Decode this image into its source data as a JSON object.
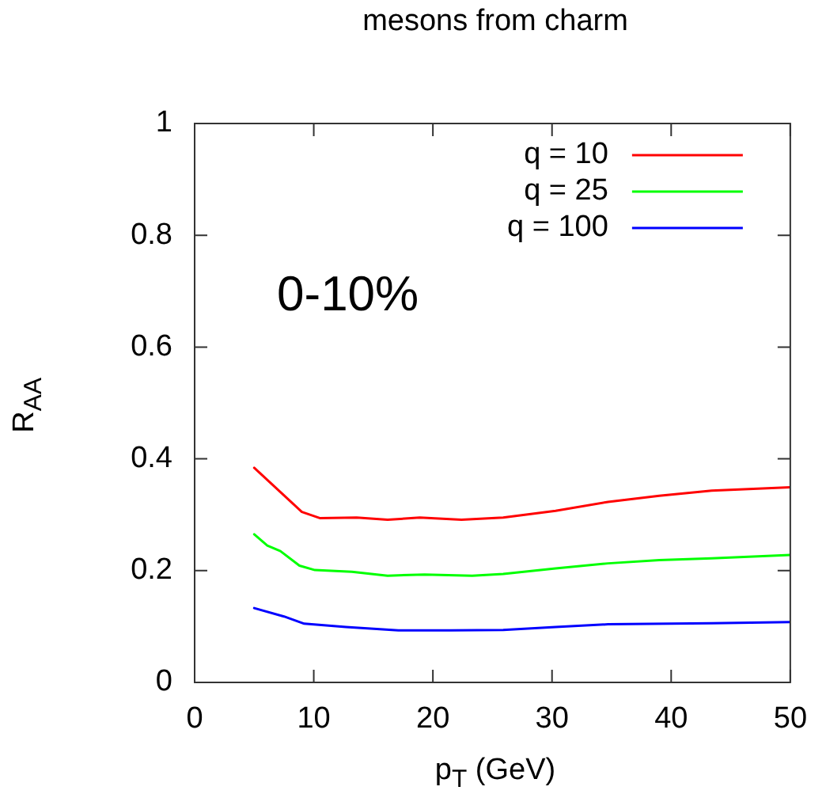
{
  "chart_data": {
    "type": "line",
    "title": "mesons from charm",
    "xlabel": "p$_{T}$ (GeV)",
    "ylabel": "R$_{AA}$",
    "annotations": [
      "0-10%"
    ],
    "xlim": [
      0,
      50
    ],
    "xticks": [
      0,
      10,
      20,
      30,
      40,
      50
    ],
    "ylim": [
      0,
      1
    ],
    "yticks": [
      0,
      0.2,
      0.4,
      0.6,
      0.8,
      1
    ],
    "grid": false,
    "legend": "top right",
    "marker": "none",
    "line_style": "solid",
    "series": [
      {
        "name": "q = 10",
        "color": "#ff0000",
        "x": [
          5.0,
          9.0,
          10.5,
          13.6,
          16.2,
          18.9,
          22.4,
          25.9,
          30.3,
          34.7,
          39.0,
          43.4,
          50.0
        ],
        "values": [
          0.384,
          0.305,
          0.294,
          0.295,
          0.291,
          0.295,
          0.291,
          0.295,
          0.307,
          0.323,
          0.334,
          0.343,
          0.349
        ]
      },
      {
        "name": "q = 25",
        "color": "#00ff00",
        "x": [
          5.0,
          6.1,
          7.2,
          8.8,
          10.1,
          13.2,
          16.2,
          19.3,
          23.3,
          25.9,
          30.3,
          34.7,
          39.0,
          43.4,
          50.0
        ],
        "values": [
          0.265,
          0.245,
          0.235,
          0.209,
          0.201,
          0.198,
          0.191,
          0.193,
          0.191,
          0.194,
          0.204,
          0.213,
          0.219,
          0.222,
          0.228
        ]
      },
      {
        "name": "q = 100",
        "color": "#0000ff",
        "x": [
          5.0,
          7.5,
          9.2,
          12.7,
          17.1,
          21.5,
          25.9,
          30.3,
          34.7,
          43.4,
          50.0
        ],
        "values": [
          0.133,
          0.118,
          0.105,
          0.099,
          0.093,
          0.093,
          0.094,
          0.099,
          0.104,
          0.106,
          0.108
        ]
      }
    ]
  }
}
